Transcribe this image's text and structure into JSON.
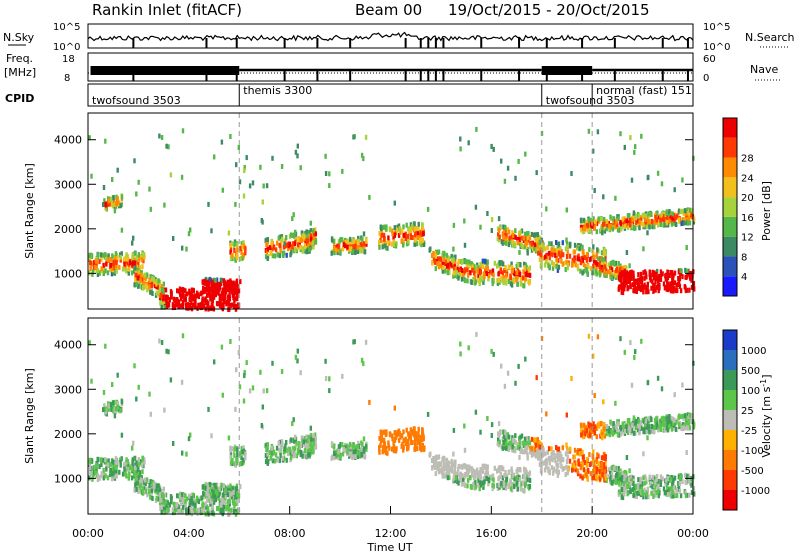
{
  "header": {
    "station": "Rankin Inlet (fitACF)",
    "beam": "Beam 00",
    "date_range": "19/Oct/2015 - 20/Oct/2015"
  },
  "nsky_panel": {
    "left_label": "N.Sky",
    "right_label": "N.Search",
    "left_ticks": [
      "10^5",
      "10^0"
    ],
    "right_ticks": [
      "10^5",
      "10^0"
    ]
  },
  "freq_panel": {
    "left_label_1": "Freq.",
    "left_label_2": "[MHz]",
    "right_label": "Nave",
    "left_ticks": [
      "18",
      "8"
    ],
    "right_ticks": [
      "60",
      "0"
    ]
  },
  "cpid_panel": {
    "label": "CPID",
    "modes": [
      {
        "name": "twofsound 3503",
        "start_hour": 0
      },
      {
        "name": "themis 3300",
        "start_hour": 6
      },
      {
        "name": "twofsound 3503",
        "start_hour": 18
      },
      {
        "name": "normal (fast) 151",
        "start_hour": 20
      }
    ]
  },
  "chart_data": [
    {
      "type": "heatmap",
      "name": "power",
      "ylabel": "Slant Range [km]",
      "xlabel": "",
      "xlim": [
        0,
        24
      ],
      "ylim": [
        200,
        4600
      ],
      "yticks": [
        1000,
        2000,
        3000,
        4000
      ],
      "colorbar": {
        "label": "Power [dB]",
        "ticks": [
          "4",
          "8",
          "12",
          "16",
          "20",
          "24",
          "28"
        ],
        "colors": [
          "#1a1aff",
          "#2a52b8",
          "#3b8a63",
          "#55b74a",
          "#a6d23c",
          "#f2c01c",
          "#ff8c00",
          "#ff3a00",
          "#ee0000"
        ]
      }
    },
    {
      "type": "heatmap",
      "name": "velocity",
      "ylabel": "Slant Range [km]",
      "xlabel": "Time UT",
      "xlim": [
        0,
        24
      ],
      "ylim": [
        200,
        4600
      ],
      "yticks": [
        1000,
        2000,
        3000,
        4000
      ],
      "xticks": [
        "00:00",
        "04:00",
        "08:00",
        "12:00",
        "16:00",
        "20:00",
        "00:00"
      ],
      "colorbar": {
        "label": "Velocity [m s^-1]",
        "ticks": [
          "1000",
          "500",
          "100",
          "25",
          "-25",
          "-100",
          "-500",
          "-1000"
        ],
        "colors": [
          "#1a3cc8",
          "#2a6ec0",
          "#3b9a58",
          "#5cc64a",
          "#bdbdb5",
          "#ffb000",
          "#ff7a00",
          "#ff3a00",
          "#ee0000"
        ]
      }
    }
  ]
}
